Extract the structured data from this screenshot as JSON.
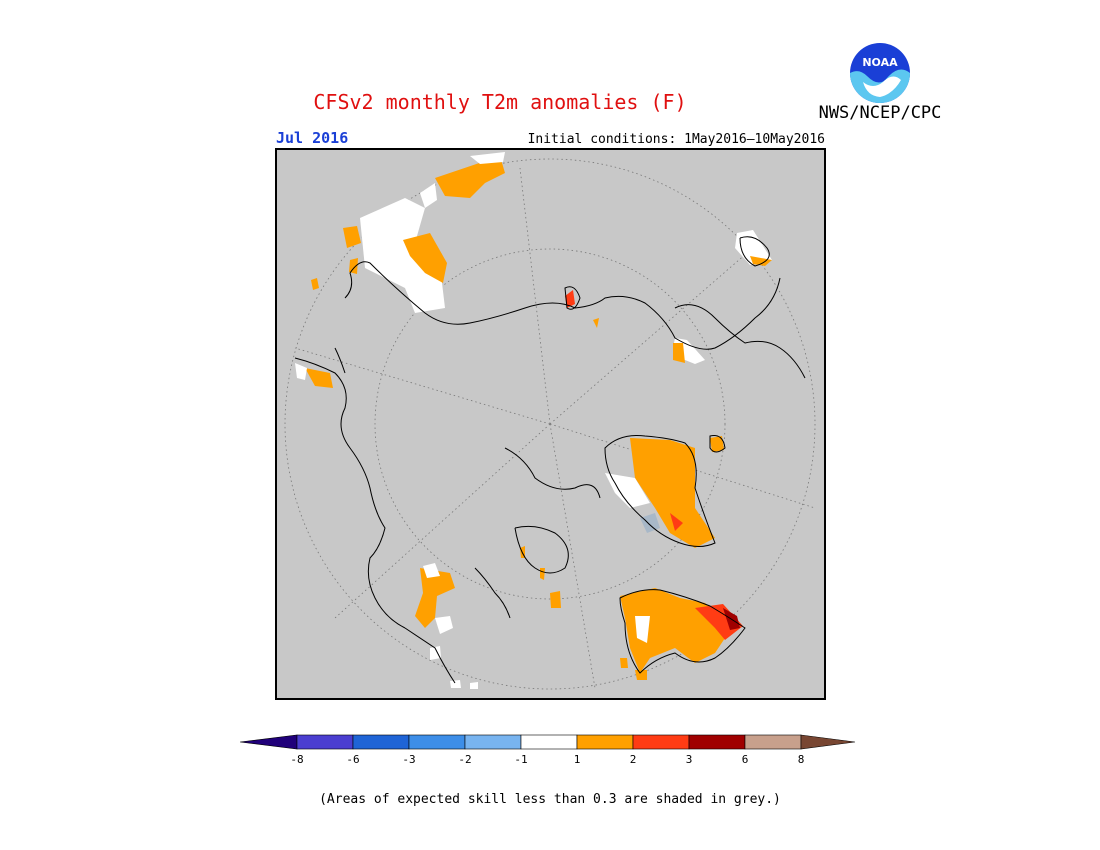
{
  "header": {
    "title": "CFSv2 monthly T2m anomalies (F)",
    "agency": "NWS/NCEP/CPC",
    "logo_text": "NOAA"
  },
  "map": {
    "month_label": "Jul 2016",
    "initial_conditions": "Initial conditions: 1May2016–10May2016",
    "projection": "north-polar-stereographic",
    "background_color": "#c8c8c8"
  },
  "colorbar": {
    "boundaries": [
      "-8",
      "-6",
      "-3",
      "-2",
      "-1",
      "1",
      "2",
      "3",
      "6",
      "8"
    ],
    "colors": [
      "#20007a",
      "#4b3ed0",
      "#1f64d6",
      "#3d8ee8",
      "#78b4f0",
      "#ffffff",
      "#ffa000",
      "#ff3c14",
      "#a00000",
      "#c8a08c",
      "#784632"
    ]
  },
  "footnote": "(Areas of expected skill less than 0.3 are shaded in grey.)"
}
